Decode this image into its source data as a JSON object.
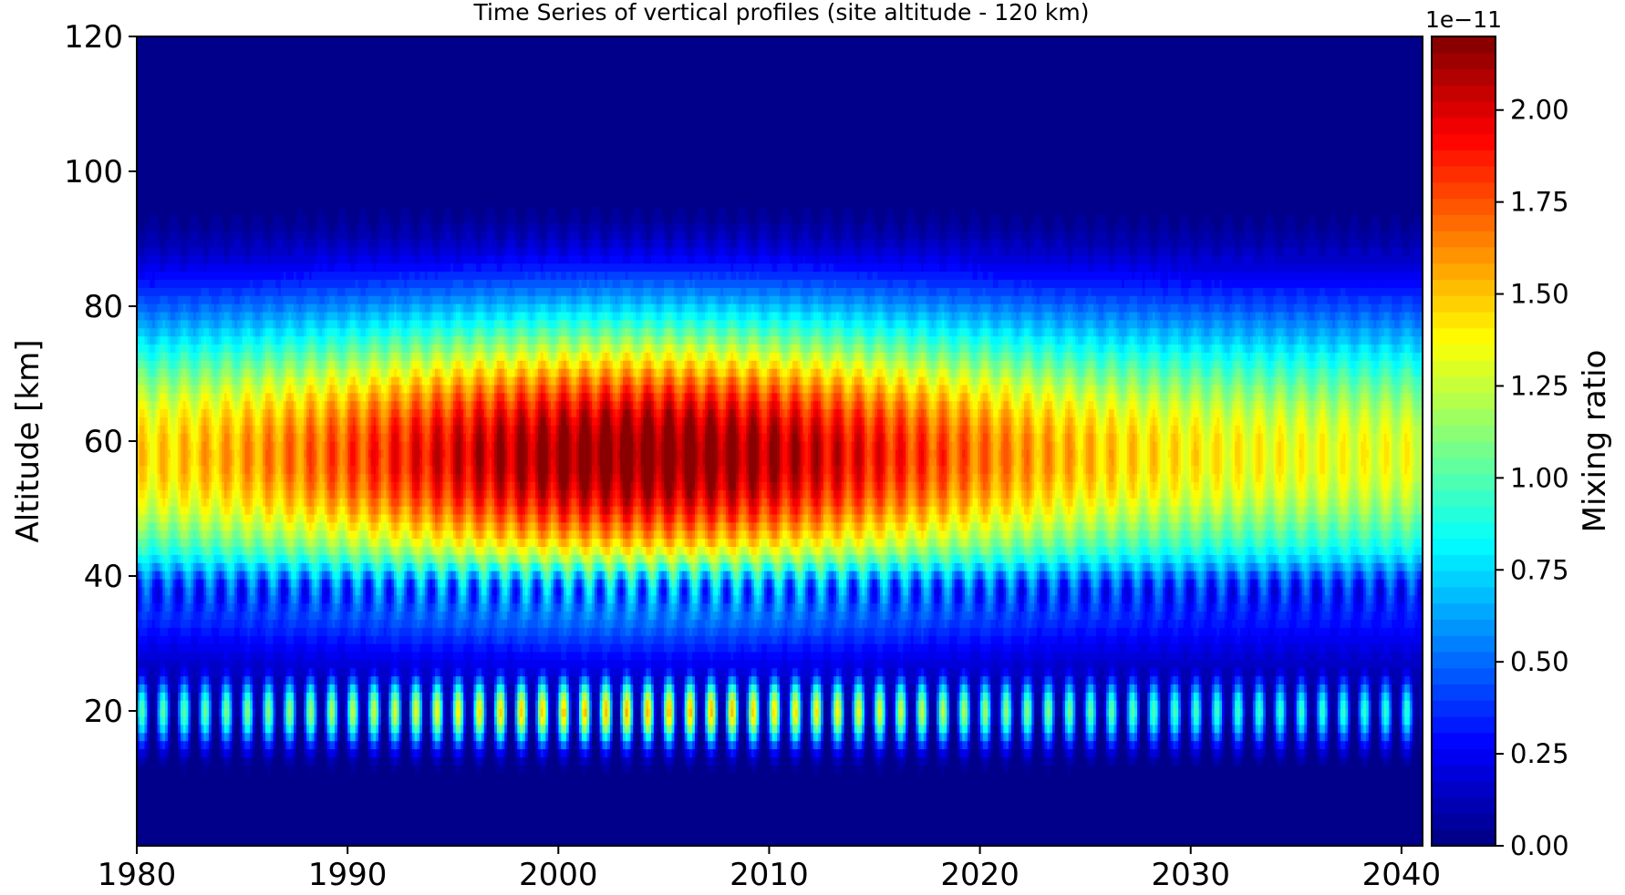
{
  "chart_data": {
    "type": "heatmap",
    "title": "Time Series of vertical profiles (site altitude - 120 km)",
    "xlabel": "",
    "ylabel": "Altitude [km]",
    "xlim": [
      1980,
      2041
    ],
    "ylim": [
      0,
      120
    ],
    "xticks": [
      1980,
      1990,
      2000,
      2010,
      2020,
      2030,
      2040
    ],
    "yticks": [
      20,
      40,
      60,
      80,
      100,
      120
    ],
    "colorbar": {
      "label": "Mixing ratio",
      "offset_label": "1e−11",
      "range": [
        0.0,
        2.2
      ],
      "ticks": [
        "0.00",
        "0.25",
        "0.50",
        "0.75",
        "1.00",
        "1.25",
        "1.50",
        "1.75",
        "2.00"
      ],
      "colormap": "jet",
      "levels": 50
    },
    "seasonal_cycles_per_year": 1,
    "features": {
      "peak_value": 2.2,
      "peak_year": 2004,
      "peak_altitude_km": 58,
      "upper_core_km": [
        45,
        85
      ],
      "lower_band_km": [
        12,
        32
      ],
      "minimum_band_km": 38,
      "top_edge_km": 90,
      "background_value": 0.0
    }
  }
}
